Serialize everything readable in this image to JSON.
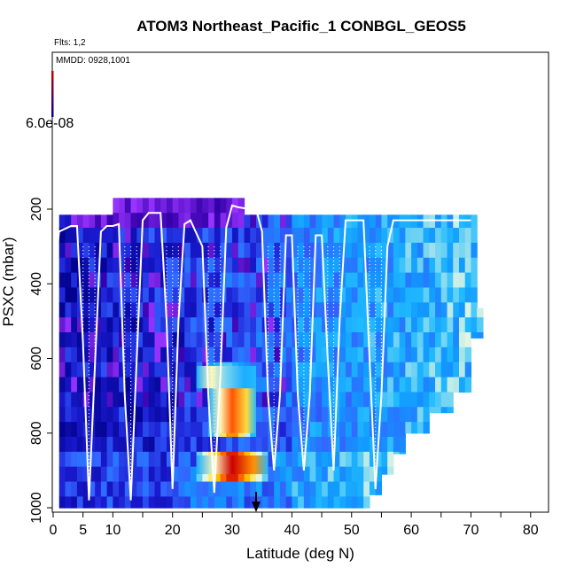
{
  "chart_data": {
    "type": "heatmap",
    "title": "ATOM3 Northeast_Pacific_1 CONBGL_GEOS5",
    "flights_label": "Flts: 1,2",
    "dates_label": "MMDD: 0928,1001",
    "colorbar_max_label": "6.0e-08",
    "xlabel": "Latitude (deg N)",
    "ylabel": "PSXC (mbar)",
    "xlim": [
      0,
      83
    ],
    "ylim": [
      1000,
      120
    ],
    "x_ticks": [
      0,
      5,
      10,
      20,
      30,
      40,
      50,
      60,
      70,
      80
    ],
    "y_ticks": [
      200,
      400,
      600,
      800,
      1000
    ],
    "marker_latitude": 34,
    "legend": "none",
    "grid": false,
    "colors": {
      "low": "#000099",
      "mid": "#0099ff",
      "high": "#ffffcc",
      "peak": "#cc0000",
      "flight_track": "#ffffff"
    },
    "curtain_columns": [
      {
        "lat": [
          1,
          10
        ],
        "p_top": 215,
        "p_bottom": 1000
      },
      {
        "lat": [
          10,
          32
        ],
        "p_top": 170,
        "p_bottom": 1000
      },
      {
        "lat": [
          32,
          53
        ],
        "p_top": 215,
        "p_bottom": 1000
      },
      {
        "lat": [
          53,
          55
        ],
        "p_top": 215,
        "p_bottom": 965
      },
      {
        "lat": [
          55,
          57
        ],
        "p_top": 215,
        "p_bottom": 910
      },
      {
        "lat": [
          57,
          59
        ],
        "p_top": 215,
        "p_bottom": 855
      },
      {
        "lat": [
          59,
          63
        ],
        "p_top": 215,
        "p_bottom": 800
      },
      {
        "lat": [
          63,
          67
        ],
        "p_top": 215,
        "p_bottom": 745
      },
      {
        "lat": [
          67,
          70
        ],
        "p_top": 215,
        "p_bottom": 690
      },
      {
        "lat": [
          70,
          71
        ],
        "p_top": 215,
        "p_bottom": 545
      },
      {
        "lat": [
          71,
          72
        ],
        "p_top": 465,
        "p_bottom": 545
      }
    ],
    "hotspots": [
      {
        "lat": [
          24,
          36
        ],
        "p": [
          860,
          910
        ],
        "level": 1.0
      },
      {
        "lat": [
          26,
          34
        ],
        "p": [
          660,
          800
        ],
        "level": 0.9
      },
      {
        "lat": [
          24,
          34
        ],
        "p": [
          620,
          680
        ],
        "level": 0.6
      },
      {
        "lat": [
          10,
          32
        ],
        "p": [
          170,
          235
        ],
        "level": 0.25
      }
    ],
    "flight_track": [
      [
        0,
        400
      ],
      [
        1,
        260
      ],
      [
        3,
        245
      ],
      [
        4,
        245
      ],
      [
        5,
        560
      ],
      [
        6,
        980
      ],
      [
        7,
        620
      ],
      [
        8,
        260
      ],
      [
        9,
        245
      ],
      [
        10,
        245
      ],
      [
        11,
        240
      ],
      [
        12,
        700
      ],
      [
        13,
        980
      ],
      [
        14,
        600
      ],
      [
        15,
        230
      ],
      [
        16,
        210
      ],
      [
        18,
        210
      ],
      [
        19,
        500
      ],
      [
        20,
        950
      ],
      [
        21,
        500
      ],
      [
        22,
        240
      ],
      [
        23,
        230
      ],
      [
        25,
        300
      ],
      [
        26,
        700
      ],
      [
        27,
        960
      ],
      [
        28,
        650
      ],
      [
        29,
        250
      ],
      [
        30,
        190
      ],
      [
        31,
        195
      ],
      [
        33,
        200
      ],
      [
        34,
        200
      ],
      [
        35,
        260
      ],
      [
        36,
        700
      ],
      [
        37,
        900
      ],
      [
        38,
        700
      ],
      [
        39,
        270
      ],
      [
        40,
        270
      ],
      [
        41,
        700
      ],
      [
        42,
        900
      ],
      [
        43,
        700
      ],
      [
        44,
        270
      ],
      [
        45,
        270
      ],
      [
        46,
        600
      ],
      [
        47,
        900
      ],
      [
        48,
        500
      ],
      [
        49,
        230
      ],
      [
        50,
        230
      ],
      [
        52,
        230
      ],
      [
        53,
        600
      ],
      [
        54,
        950
      ],
      [
        55,
        700
      ],
      [
        56,
        300
      ],
      [
        57,
        230
      ],
      [
        70,
        230
      ]
    ]
  }
}
